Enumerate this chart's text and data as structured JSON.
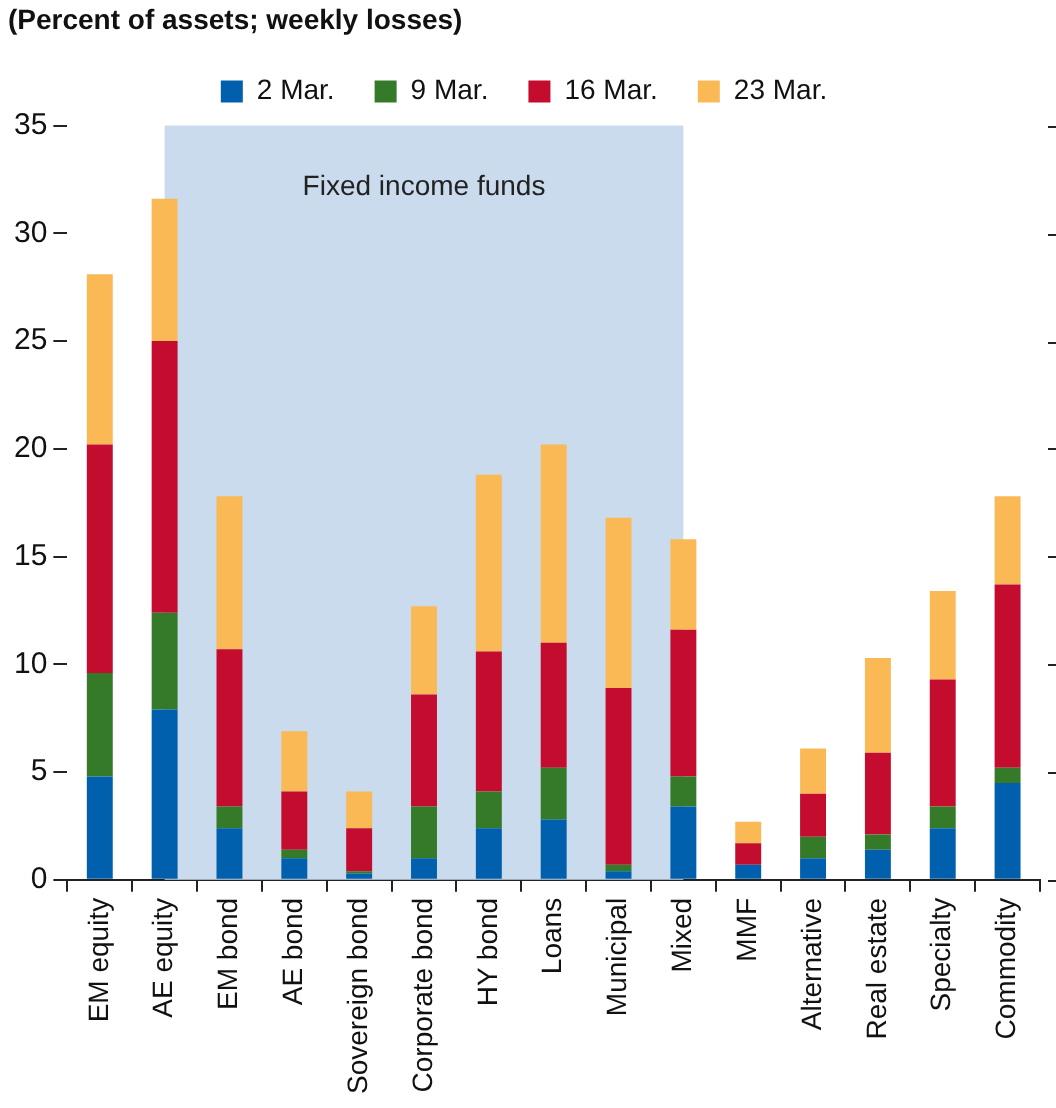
{
  "chart_data": {
    "type": "bar",
    "subtitle": "(Percent of assets; weekly losses)",
    "categories": [
      "EM equity",
      "AE equity",
      "EM bond",
      "AE bond",
      "Sovereign bond",
      "Corporate bond",
      "HY bond",
      "Loans",
      "Municipal",
      "Mixed",
      "MMF",
      "Alternative",
      "Real estate",
      "Specialty",
      "Commodity"
    ],
    "series": [
      {
        "name": "2 Mar.",
        "color": "#0060ad",
        "values": [
          4.8,
          7.9,
          2.4,
          1.0,
          0.3,
          1.0,
          2.4,
          2.8,
          0.4,
          3.4,
          0.7,
          1.0,
          1.4,
          2.4,
          4.5
        ]
      },
      {
        "name": "9 Mar.",
        "color": "#347a28",
        "values": [
          4.8,
          4.5,
          1.0,
          0.4,
          0.1,
          2.4,
          1.7,
          2.4,
          0.3,
          1.4,
          0,
          1.0,
          0.7,
          1.0,
          0.7
        ]
      },
      {
        "name": "16 Mar.",
        "color": "#c40c2e",
        "values": [
          10.6,
          12.6,
          7.3,
          2.7,
          2.0,
          5.2,
          6.5,
          5.8,
          8.2,
          6.8,
          1.0,
          2.0,
          3.8,
          5.9,
          8.5
        ]
      },
      {
        "name": "23 Mar.",
        "color": "#fbb955",
        "values": [
          7.9,
          6.6,
          7.1,
          2.8,
          1.7,
          4.1,
          8.2,
          9.2,
          7.9,
          4.2,
          1.0,
          2.1,
          4.4,
          4.1,
          4.1
        ]
      }
    ],
    "stacked": true,
    "ylim": [
      0,
      35
    ],
    "yticks": [
      0,
      5,
      10,
      15,
      20,
      25,
      30,
      35
    ],
    "bands": [
      {
        "axis": "x",
        "from": "AE equity",
        "to": "Mixed",
        "label": "Fixed income funds",
        "color": "#c9dbec"
      }
    ],
    "legend": "top",
    "grid": false
  }
}
